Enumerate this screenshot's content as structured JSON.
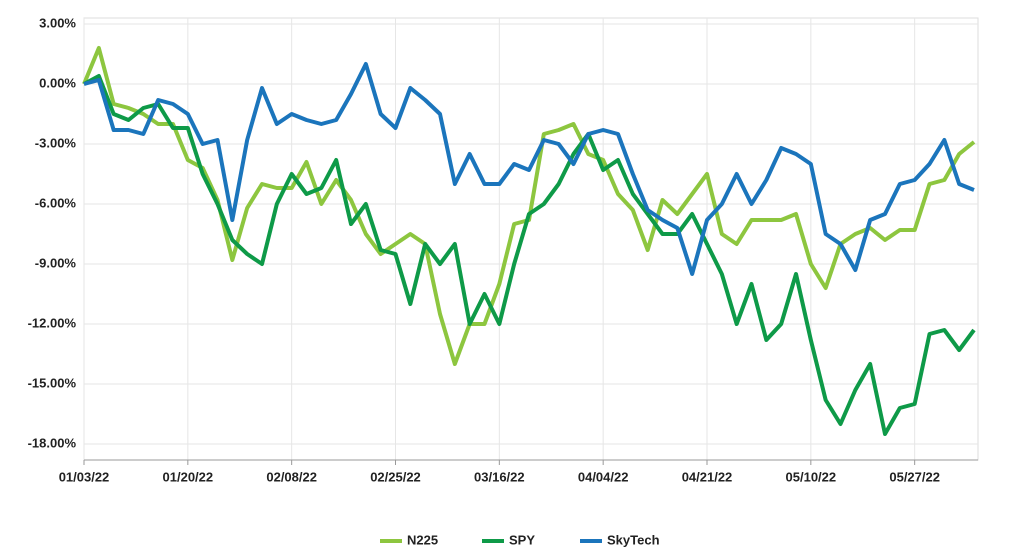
{
  "chart_data": {
    "type": "line",
    "categories": [
      "01/03/22",
      null,
      null,
      null,
      null,
      null,
      null,
      "01/20/22",
      null,
      null,
      null,
      null,
      null,
      null,
      "02/08/22",
      null,
      null,
      null,
      null,
      null,
      null,
      "02/25/22",
      null,
      null,
      null,
      null,
      null,
      null,
      "03/16/22",
      null,
      null,
      null,
      null,
      null,
      null,
      "04/04/22",
      null,
      null,
      null,
      null,
      null,
      null,
      "04/21/22",
      null,
      null,
      null,
      null,
      null,
      null,
      "05/10/22",
      null,
      null,
      null,
      null,
      null,
      null,
      "05/27/22",
      null,
      null,
      null,
      null
    ],
    "series": [
      {
        "name": "N225",
        "color": "#8dc63f",
        "values": [
          0.0,
          1.8,
          -1.0,
          -1.2,
          -1.5,
          -2.0,
          -2.0,
          -3.8,
          -4.2,
          -5.8,
          -8.8,
          -6.2,
          -5.0,
          -5.2,
          -5.2,
          -3.9,
          -6.0,
          -4.8,
          -5.8,
          -7.5,
          -8.5,
          -8.0,
          -7.5,
          -8.0,
          -11.5,
          -14.0,
          -12.0,
          -12.0,
          -10.0,
          -7.0,
          -6.8,
          -2.5,
          -2.3,
          -2.0,
          -3.5,
          -3.8,
          -5.5,
          -6.3,
          -8.3,
          -5.8,
          -6.5,
          -5.5,
          -4.5,
          -7.5,
          -8.0,
          -6.8,
          -6.8,
          -6.8,
          -6.5,
          -9.0,
          -10.2,
          -8.0,
          -7.5,
          -7.2,
          -7.8,
          -7.3,
          -7.3,
          -5.0,
          -4.8,
          -3.5,
          -2.9
        ]
      },
      {
        "name": "SPY",
        "color": "#0e9a48",
        "values": [
          0.0,
          0.4,
          -1.5,
          -1.8,
          -1.2,
          -1.0,
          -2.2,
          -2.2,
          -4.5,
          -6.0,
          -7.8,
          -8.5,
          -9.0,
          -6.0,
          -4.5,
          -5.5,
          -5.2,
          -3.8,
          -7.0,
          -6.0,
          -8.3,
          -8.5,
          -11.0,
          -8.0,
          -9.0,
          -8.0,
          -12.0,
          -10.5,
          -12.0,
          -9.0,
          -6.5,
          -6.0,
          -5.0,
          -3.5,
          -2.5,
          -4.3,
          -3.8,
          -5.5,
          -6.5,
          -7.5,
          -7.5,
          -6.5,
          -8.0,
          -9.5,
          -12.0,
          -10.0,
          -12.8,
          -12.0,
          -9.5,
          -12.8,
          -15.8,
          -17.0,
          -15.3,
          -14.0,
          -17.5,
          -16.2,
          -16.0,
          -12.5,
          -12.3,
          -13.3,
          -12.3
        ]
      },
      {
        "name": "SkyTech",
        "color": "#1b75bc",
        "values": [
          0.0,
          0.2,
          -2.3,
          -2.3,
          -2.5,
          -0.8,
          -1.0,
          -1.5,
          -3.0,
          -2.8,
          -6.8,
          -2.8,
          -0.2,
          -2.0,
          -1.5,
          -1.8,
          -2.0,
          -1.8,
          -0.5,
          1.0,
          -1.5,
          -2.2,
          -0.2,
          -0.8,
          -1.5,
          -5.0,
          -3.5,
          -5.0,
          -5.0,
          -4.0,
          -4.3,
          -2.8,
          -3.0,
          -4.0,
          -2.5,
          -2.3,
          -2.5,
          -4.5,
          -6.3,
          -6.8,
          -7.2,
          -9.5,
          -6.8,
          -6.0,
          -4.5,
          -6.0,
          -4.8,
          -3.2,
          -3.5,
          -4.0,
          -7.5,
          -8.0,
          -9.3,
          -6.8,
          -6.5,
          -5.0,
          -4.8,
          -4.0,
          -2.8,
          -5.0,
          -5.3
        ]
      }
    ],
    "ylim": [
      -18.8,
      3.3
    ],
    "yticks": [
      {
        "value": 3,
        "label": "3.00%"
      },
      {
        "value": 0,
        "label": "0.00%"
      },
      {
        "value": -3,
        "label": "-3.00%"
      },
      {
        "value": -6,
        "label": "-6.00%"
      },
      {
        "value": -9,
        "label": "-9.00%"
      },
      {
        "value": -12,
        "label": "-12.00%"
      },
      {
        "value": -15,
        "label": "-15.00%"
      },
      {
        "value": -18,
        "label": "-18.00%"
      }
    ],
    "grid": true
  }
}
